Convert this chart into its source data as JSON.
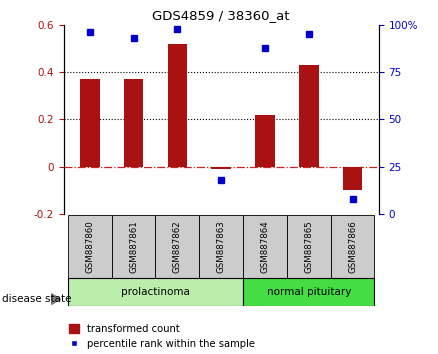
{
  "title": "GDS4859 / 38360_at",
  "samples": [
    "GSM887860",
    "GSM887861",
    "GSM887862",
    "GSM887863",
    "GSM887864",
    "GSM887865",
    "GSM887866"
  ],
  "transformed_counts": [
    0.37,
    0.37,
    0.52,
    -0.01,
    0.22,
    0.43,
    -0.1
  ],
  "percentile_ranks": [
    96,
    93,
    98,
    18,
    88,
    95,
    8
  ],
  "bar_color": "#AA1111",
  "dot_color": "#0000CC",
  "ylim_left": [
    -0.2,
    0.6
  ],
  "ylim_right": [
    0,
    100
  ],
  "yticks_left": [
    -0.2,
    0.0,
    0.2,
    0.4,
    0.6
  ],
  "yticks_right": [
    0,
    25,
    50,
    75,
    100
  ],
  "yticklabels_right": [
    "0",
    "25",
    "50",
    "75",
    "100%"
  ],
  "dotted_lines": [
    0.2,
    0.4
  ],
  "groups": [
    {
      "label": "prolactinoma",
      "start": 0,
      "end": 3,
      "color": "#BBEEAA"
    },
    {
      "label": "normal pituitary",
      "start": 4,
      "end": 6,
      "color": "#44DD44"
    }
  ],
  "disease_state_label": "disease state",
  "legend_bar_label": "transformed count",
  "legend_dot_label": "percentile rank within the sample",
  "bar_width": 0.45,
  "background_xticklabel": "#CCCCCC",
  "zero_line_color": "#CC2222",
  "grid_color": "#000000"
}
